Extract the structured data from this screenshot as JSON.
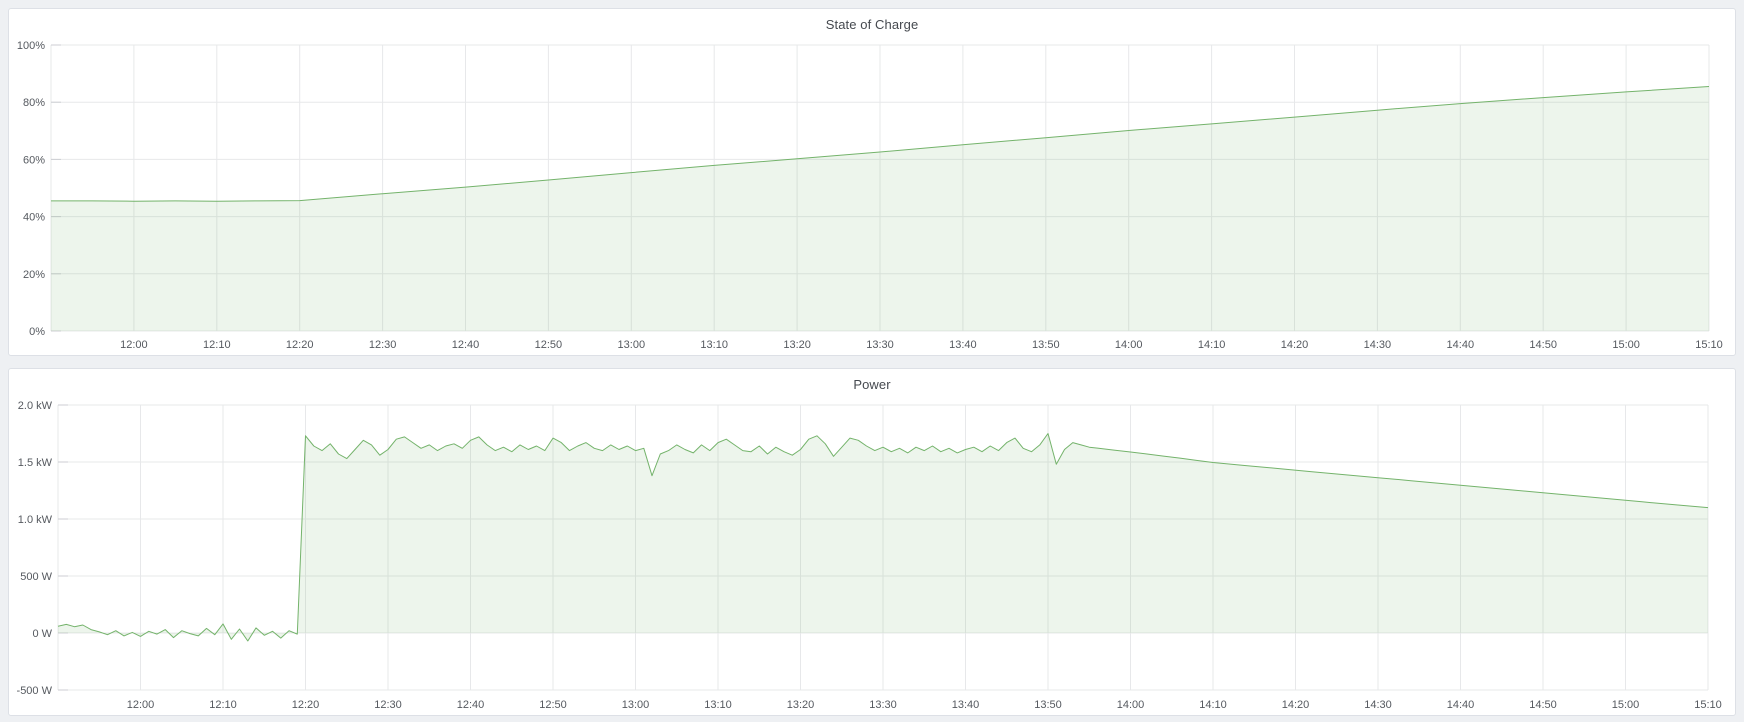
{
  "page": {
    "background": "#eef0f3"
  },
  "colors": {
    "series_line": "#74b36b",
    "series_fill": "rgba(116,179,107,0.13)",
    "grid": "#e7e8ea",
    "tick": "#cdced3",
    "axis_text": "#55595f",
    "title_text": "#45494f",
    "panel_bg": "#ffffff",
    "panel_border": "#dde0e6"
  },
  "time_axis": {
    "start_time": "11:50",
    "end_time": "15:10",
    "range_minutes": [
      0,
      200
    ],
    "grid_minutes": [
      0,
      10,
      20,
      30,
      40,
      50,
      60,
      70,
      80,
      90,
      100,
      110,
      120,
      130,
      140,
      150,
      160,
      170,
      180,
      190,
      200
    ],
    "ticks": [
      {
        "m": 10,
        "label": "12:00"
      },
      {
        "m": 20,
        "label": "12:10"
      },
      {
        "m": 30,
        "label": "12:20"
      },
      {
        "m": 40,
        "label": "12:30"
      },
      {
        "m": 50,
        "label": "12:40"
      },
      {
        "m": 60,
        "label": "12:50"
      },
      {
        "m": 70,
        "label": "13:00"
      },
      {
        "m": 80,
        "label": "13:10"
      },
      {
        "m": 90,
        "label": "13:20"
      },
      {
        "m": 100,
        "label": "13:30"
      },
      {
        "m": 110,
        "label": "13:40"
      },
      {
        "m": 120,
        "label": "13:50"
      },
      {
        "m": 130,
        "label": "14:00"
      },
      {
        "m": 140,
        "label": "14:10"
      },
      {
        "m": 150,
        "label": "14:20"
      },
      {
        "m": 160,
        "label": "14:30"
      },
      {
        "m": 170,
        "label": "14:40"
      },
      {
        "m": 180,
        "label": "14:50"
      },
      {
        "m": 190,
        "label": "15:00"
      },
      {
        "m": 200,
        "label": "15:10"
      }
    ]
  },
  "chart_data": [
    {
      "type": "area",
      "title": "State of Charge",
      "xlabel": "",
      "ylabel": "",
      "unit": "percent",
      "x_unit": "minutes since 11:50",
      "ylim": [
        0,
        100
      ],
      "grid": true,
      "legend_position": "none",
      "y_ticks": [
        {
          "v": 0,
          "label": "0%"
        },
        {
          "v": 20,
          "label": "20%"
        },
        {
          "v": 40,
          "label": "40%"
        },
        {
          "v": 60,
          "label": "60%"
        },
        {
          "v": 80,
          "label": "80%"
        },
        {
          "v": 100,
          "label": "100%"
        }
      ],
      "x": [
        0,
        5,
        10,
        15,
        20,
        25,
        30,
        40,
        50,
        60,
        70,
        80,
        90,
        100,
        110,
        120,
        130,
        140,
        150,
        160,
        170,
        180,
        190,
        200
      ],
      "y": [
        45.5,
        45.5,
        45.4,
        45.5,
        45.4,
        45.5,
        45.6,
        48.0,
        50.3,
        52.8,
        55.4,
        57.9,
        60.2,
        62.6,
        65.1,
        67.6,
        70.1,
        72.4,
        74.8,
        77.2,
        79.5,
        81.6,
        83.6,
        85.5
      ]
    },
    {
      "type": "area",
      "title": "Power",
      "xlabel": "",
      "ylabel": "",
      "unit": "watt",
      "x_unit": "minutes since 11:50",
      "ylim": [
        -500,
        2000
      ],
      "grid": true,
      "legend_position": "none",
      "y_ticks": [
        {
          "v": -500,
          "label": "-500 W"
        },
        {
          "v": 0,
          "label": "0 W"
        },
        {
          "v": 500,
          "label": "500 W"
        },
        {
          "v": 1000,
          "label": "1.0 kW"
        },
        {
          "v": 1500,
          "label": "1.5 kW"
        },
        {
          "v": 2000,
          "label": "2.0 kW"
        }
      ],
      "x": [
        0,
        1,
        2,
        3,
        4,
        5,
        6,
        7,
        8,
        9,
        10,
        11,
        12,
        13,
        14,
        15,
        16,
        17,
        18,
        19,
        20,
        21,
        22,
        23,
        24,
        25,
        26,
        27,
        28,
        29,
        30,
        31,
        32,
        33,
        34,
        35,
        36,
        37,
        38,
        39,
        40,
        41,
        42,
        43,
        44,
        45,
        46,
        47,
        48,
        49,
        50,
        51,
        52,
        53,
        54,
        55,
        56,
        57,
        58,
        59,
        60,
        61,
        62,
        63,
        64,
        65,
        66,
        67,
        68,
        69,
        70,
        71,
        72,
        73,
        74,
        75,
        76,
        77,
        78,
        79,
        80,
        81,
        82,
        83,
        84,
        85,
        86,
        87,
        88,
        89,
        90,
        91,
        92,
        93,
        94,
        95,
        96,
        97,
        98,
        99,
        100,
        101,
        102,
        103,
        104,
        105,
        106,
        107,
        108,
        109,
        110,
        111,
        112,
        113,
        114,
        115,
        116,
        117,
        118,
        119,
        120,
        121,
        122,
        123,
        124,
        125,
        126,
        128,
        130,
        132,
        134,
        136,
        138,
        140,
        144,
        148,
        152,
        156,
        160,
        164,
        168,
        172,
        176,
        180,
        184,
        188,
        192,
        196,
        200
      ],
      "y": [
        60,
        75,
        55,
        70,
        30,
        10,
        -15,
        20,
        -25,
        5,
        -30,
        15,
        -10,
        30,
        -40,
        20,
        -5,
        -25,
        40,
        -15,
        80,
        -55,
        35,
        -70,
        45,
        -20,
        15,
        -45,
        20,
        -10,
        1730,
        1640,
        1600,
        1660,
        1570,
        1530,
        1610,
        1690,
        1650,
        1560,
        1610,
        1700,
        1720,
        1670,
        1620,
        1650,
        1600,
        1640,
        1660,
        1620,
        1690,
        1720,
        1650,
        1600,
        1630,
        1590,
        1650,
        1610,
        1640,
        1600,
        1710,
        1670,
        1600,
        1640,
        1670,
        1620,
        1600,
        1650,
        1610,
        1640,
        1600,
        1620,
        1380,
        1570,
        1600,
        1650,
        1610,
        1580,
        1650,
        1600,
        1670,
        1700,
        1650,
        1600,
        1590,
        1640,
        1570,
        1630,
        1590,
        1560,
        1610,
        1700,
        1730,
        1660,
        1550,
        1630,
        1710,
        1690,
        1640,
        1600,
        1630,
        1590,
        1620,
        1580,
        1630,
        1600,
        1640,
        1590,
        1620,
        1580,
        1610,
        1630,
        1590,
        1640,
        1600,
        1670,
        1710,
        1620,
        1590,
        1650,
        1750,
        1480,
        1610,
        1670,
        1650,
        1630,
        1622,
        1604,
        1588,
        1570,
        1552,
        1534,
        1514,
        1496,
        1468,
        1442,
        1415,
        1389,
        1362,
        1336,
        1310,
        1283,
        1257,
        1230,
        1204,
        1178,
        1151,
        1125,
        1100
      ]
    }
  ]
}
